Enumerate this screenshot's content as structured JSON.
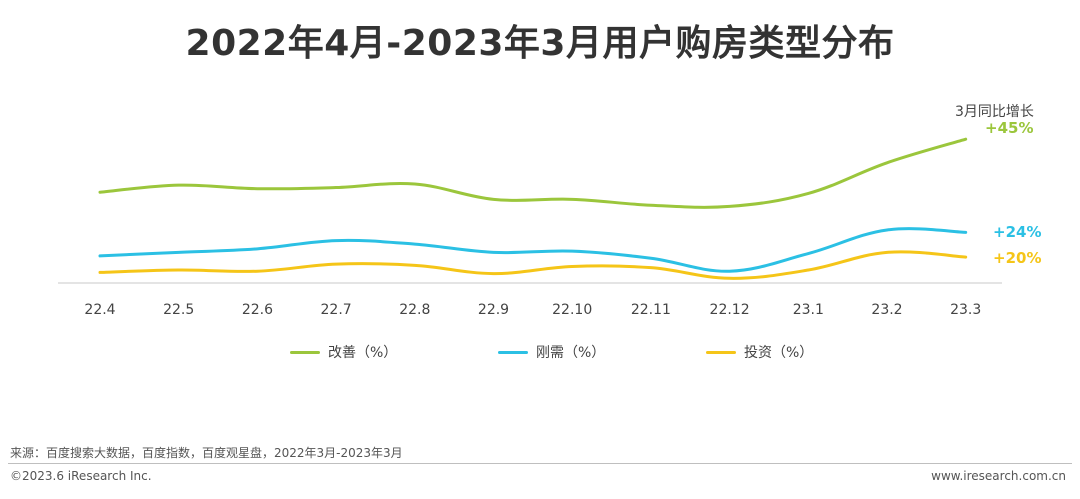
{
  "page": {
    "title": "2022年4月-2023年3月用户购房类型分布",
    "source": "来源：百度搜索大数据，百度指数，百度观星盘，2022年3月-2023年3月",
    "copyright": "©2023.6 iResearch Inc.",
    "website": "www.iresearch.com.cn"
  },
  "chart_data": {
    "type": "line",
    "categories": [
      "22.4",
      "22.5",
      "22.6",
      "22.7",
      "22.8",
      "22.9",
      "22.10",
      "22.11",
      "22.12",
      "23.1",
      "23.2",
      "23.3"
    ],
    "series": [
      {
        "name": "改善（%）",
        "color": "#9bc63c",
        "values": [
          38.5,
          41.5,
          40.0,
          40.5,
          42.0,
          35.5,
          35.5,
          33.0,
          32.5,
          38.0,
          51.0,
          61.0
        ],
        "yoy": "+45%"
      },
      {
        "name": "刚需（%）",
        "color": "#2bc0e4",
        "values": [
          11.5,
          13.0,
          14.5,
          18.0,
          16.5,
          13.0,
          13.5,
          10.5,
          5.0,
          12.5,
          22.5,
          21.5
        ],
        "yoy": "+24%"
      },
      {
        "name": "投资（%）",
        "color": "#f5c518",
        "values": [
          4.5,
          5.5,
          5.0,
          8.0,
          7.5,
          4.0,
          7.0,
          6.5,
          2.0,
          5.5,
          13.0,
          11.0
        ],
        "yoy": "+20%"
      }
    ],
    "yoy_title": "3月同比增长",
    "ylim": [
      0,
      70
    ],
    "grid": false,
    "legend": "bottom"
  }
}
